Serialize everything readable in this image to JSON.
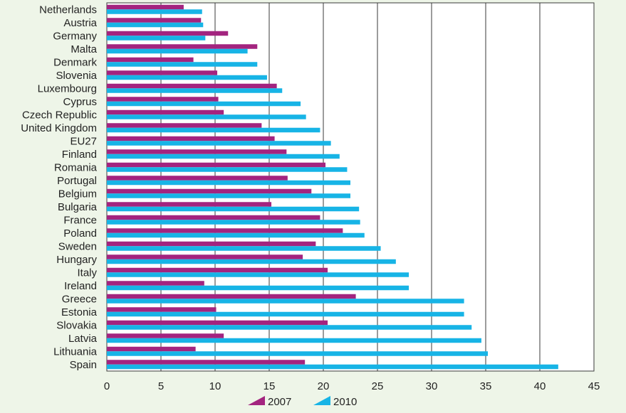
{
  "chart_data": {
    "type": "bar",
    "orientation": "horizontal",
    "categories": [
      "Netherlands",
      "Austria",
      "Germany",
      "Malta",
      "Denmark",
      "Slovenia",
      "Luxembourg",
      "Cyprus",
      "Czech Republic",
      "United Kingdom",
      "EU27",
      "Finland",
      "Romania",
      "Portugal",
      "Belgium",
      "Bulgaria",
      "France",
      "Poland",
      "Sweden",
      "Hungary",
      "Italy",
      "Ireland",
      "Greece",
      "Estonia",
      "Slovakia",
      "Latvia",
      "Lithuania",
      "Spain"
    ],
    "series": [
      {
        "name": "2007",
        "color": "#a3247f",
        "values": [
          7.1,
          8.7,
          11.2,
          13.9,
          8.0,
          10.2,
          15.7,
          10.3,
          10.8,
          14.3,
          15.5,
          16.6,
          20.2,
          16.7,
          18.9,
          15.2,
          19.7,
          21.8,
          19.3,
          18.1,
          20.4,
          9.0,
          23.0,
          10.1,
          20.4,
          10.8,
          8.2,
          18.3
        ],
        "value_order_note": "values follow categories order"
      },
      {
        "name": "2010",
        "color": "#17b4e6",
        "values": [
          8.8,
          8.9,
          9.1,
          13.0,
          13.9,
          14.8,
          16.2,
          17.9,
          18.4,
          19.7,
          20.7,
          21.5,
          22.2,
          22.5,
          22.5,
          23.3,
          23.4,
          23.8,
          25.3,
          26.7,
          27.9,
          27.9,
          33.0,
          33.0,
          33.7,
          34.6,
          35.2,
          41.7
        ]
      }
    ],
    "xlim": [
      0,
      45
    ],
    "x_ticks": [
      "0",
      "5",
      "10",
      "15",
      "20",
      "25",
      "30",
      "35",
      "40",
      "45"
    ],
    "grid": "vertical",
    "legend_position": "bottom-center",
    "title": "",
    "xlabel": "",
    "ylabel": ""
  }
}
